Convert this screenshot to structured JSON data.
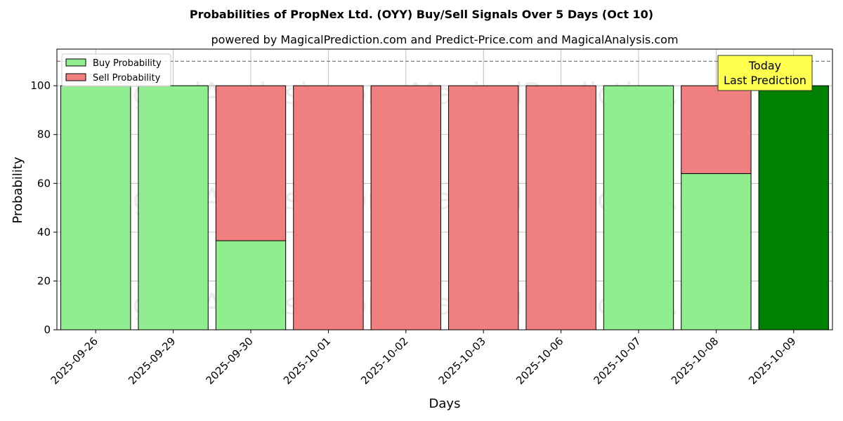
{
  "chart_data": {
    "type": "bar",
    "stacked": true,
    "title": "Probabilities of PropNex Ltd. (OYY) Buy/Sell Signals Over 5 Days (Oct 10)",
    "subtitle": "powered by MagicalPrediction.com and Predict-Price.com and MagicalAnalysis.com",
    "xlabel": "Days",
    "ylabel": "Probability",
    "ylim": [
      0,
      115
    ],
    "yticks": [
      0,
      20,
      40,
      60,
      80,
      100
    ],
    "grid": true,
    "legend_position": "top-left",
    "threshold_line": 110,
    "categories": [
      "2025-09-26",
      "2025-09-29",
      "2025-09-30",
      "2025-10-01",
      "2025-10-02",
      "2025-10-03",
      "2025-10-06",
      "2025-10-07",
      "2025-10-08",
      "2025-10-09"
    ],
    "series": [
      {
        "name": "Buy Probability",
        "color": "#90ee90",
        "values": [
          100,
          100,
          36.5,
          0,
          0,
          0,
          0,
          100,
          64,
          100
        ]
      },
      {
        "name": "Sell Probability",
        "color": "#f08080",
        "values": [
          0,
          0,
          63.5,
          100,
          100,
          100,
          100,
          0,
          36,
          0
        ]
      }
    ],
    "highlight": {
      "index": 9,
      "color": "#008000"
    },
    "annotation": {
      "lines": [
        "Today",
        "Last Prediction"
      ],
      "background": "#ffff4d"
    },
    "watermarks": [
      "MagicalAnalysis.com",
      "MagicalPrediction.com"
    ]
  }
}
